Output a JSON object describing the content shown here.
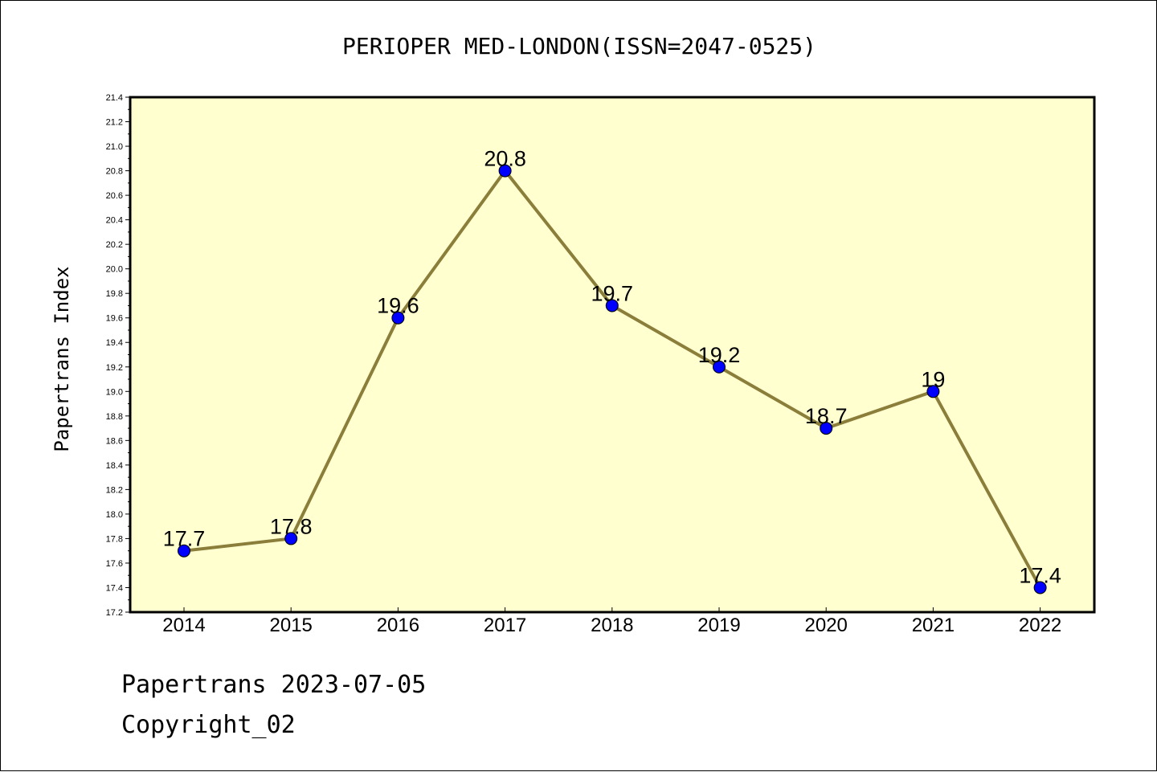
{
  "chart_data": {
    "type": "line",
    "title": "PERIOPER MED-LONDON(ISSN=2047-0525)",
    "xlabel": "",
    "ylabel": "Papertrans Index",
    "categories": [
      "2014",
      "2015",
      "2016",
      "2017",
      "2018",
      "2019",
      "2020",
      "2021",
      "2022"
    ],
    "values": [
      17.7,
      17.8,
      19.6,
      20.8,
      19.7,
      19.2,
      18.7,
      19.0,
      17.4
    ],
    "data_labels": [
      "17.7",
      "17.8",
      "19.6",
      "20.8",
      "19.7",
      "19.2",
      "18.7",
      "19",
      "17.4"
    ],
    "ylim": [
      17.2,
      21.4
    ],
    "yticks": [
      "17.2",
      "17.4",
      "17.6",
      "17.8",
      "18.0",
      "18.2",
      "18.4",
      "18.6",
      "18.8",
      "19.0",
      "19.2",
      "19.4",
      "19.6",
      "19.8",
      "20.0",
      "20.2",
      "20.4",
      "20.6",
      "20.8",
      "21.0",
      "21.2",
      "21.4"
    ],
    "grid": false,
    "colors": {
      "plot_background": "#ffffd0",
      "line": "#8b7d3a",
      "marker": "#0000ff"
    }
  },
  "footer": {
    "line1": "Papertrans 2023-07-05",
    "line2": "Copyright_02"
  }
}
